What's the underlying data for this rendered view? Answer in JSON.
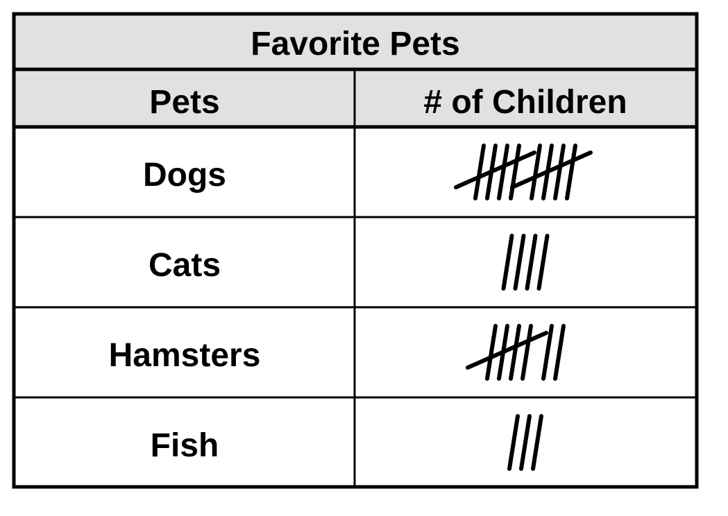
{
  "chart_data": {
    "type": "table",
    "title": "Favorite Pets",
    "columns": [
      "Pets",
      "# of Children"
    ],
    "categories": [
      "Dogs",
      "Cats",
      "Hamsters",
      "Fish"
    ],
    "values": [
      10,
      4,
      7,
      3
    ],
    "value_display": "tally marks"
  },
  "colors": {
    "header_fill": "#e0e1e2",
    "border": "#000000",
    "body_fill": "#ffffff"
  }
}
